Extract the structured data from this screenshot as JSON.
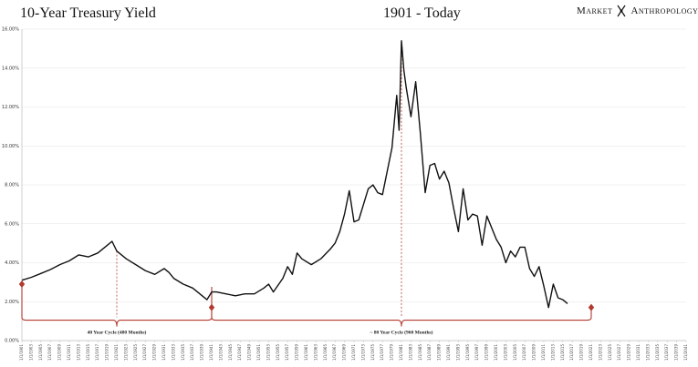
{
  "header": {
    "title": "10-Year Treasury Yield",
    "period": "1901 - Today",
    "brand_left": "Market",
    "brand_right": "Anthropology"
  },
  "colors": {
    "line": "#111111",
    "accent": "#b23a2e",
    "grid": "#e3e3e3",
    "axis": "#bbbbbb"
  },
  "annotations": {
    "cycle_40": "40 Year Cycle (480 Months)",
    "cycle_80": "~ 80 Year Cycle (960 Months)"
  },
  "chart_data": {
    "type": "line",
    "title": "10-Year Treasury Yield",
    "subtitle": "1901 - Today",
    "ylim": [
      0,
      16
    ],
    "xlim": [
      1901,
      2041
    ],
    "y_ticks": [
      "0.00%",
      "2.00%",
      "4.00%",
      "6.00%",
      "8.00%",
      "10.00%",
      "12.00%",
      "14.00%",
      "16.00%"
    ],
    "grid": true,
    "x_tick_years": [
      1901,
      1903,
      1905,
      1907,
      1909,
      1911,
      1913,
      1915,
      1917,
      1919,
      1921,
      1923,
      1925,
      1927,
      1929,
      1931,
      1933,
      1935,
      1937,
      1939,
      1941,
      1943,
      1945,
      1947,
      1949,
      1951,
      1953,
      1955,
      1957,
      1959,
      1961,
      1963,
      1965,
      1967,
      1969,
      1971,
      1973,
      1975,
      1977,
      1979,
      1981,
      1983,
      1985,
      1987,
      1989,
      1991,
      1993,
      1995,
      1997,
      1999,
      2001,
      2003,
      2005,
      2007,
      2009,
      2011,
      2013,
      2015,
      2017,
      2019,
      2021,
      2023,
      2025,
      2027,
      2029,
      2031,
      2033,
      2035,
      2037,
      2039,
      2041
    ],
    "series": [
      {
        "x": [
          1901,
          1903,
          1905,
          1907,
          1909,
          1911,
          1913,
          1915,
          1917,
          1919,
          1920,
          1921,
          1922,
          1923,
          1925,
          1927,
          1929,
          1931,
          1932,
          1933,
          1935,
          1937,
          1939,
          1940,
          1941,
          1942,
          1944,
          1946,
          1948,
          1950,
          1952,
          1953,
          1954,
          1956,
          1957,
          1958,
          1959,
          1960,
          1962,
          1964,
          1966,
          1967,
          1968,
          1969,
          1970,
          1971,
          1972,
          1973,
          1974,
          1975,
          1976,
          1977,
          1978,
          1979,
          1980,
          1980.5,
          1981,
          1981.5,
          1982,
          1983,
          1984,
          1985,
          1986,
          1987,
          1988,
          1989,
          1990,
          1991,
          1992,
          1993,
          1994,
          1995,
          1996,
          1997,
          1998,
          1999,
          2000,
          2001,
          2002,
          2003,
          2004,
          2005,
          2006,
          2007,
          2008,
          2009,
          2010,
          2011,
          2012,
          2013,
          2014,
          2015,
          2016
        ],
        "y": [
          3.1,
          3.25,
          3.45,
          3.65,
          3.9,
          4.1,
          4.4,
          4.3,
          4.5,
          4.9,
          5.1,
          4.6,
          4.4,
          4.2,
          3.9,
          3.6,
          3.4,
          3.7,
          3.5,
          3.2,
          2.9,
          2.7,
          2.3,
          2.1,
          2.5,
          2.5,
          2.4,
          2.3,
          2.4,
          2.4,
          2.7,
          2.9,
          2.5,
          3.2,
          3.8,
          3.4,
          4.5,
          4.2,
          3.9,
          4.2,
          4.7,
          5.0,
          5.6,
          6.5,
          7.7,
          6.1,
          6.2,
          7.0,
          7.8,
          8.0,
          7.6,
          7.5,
          8.7,
          9.9,
          12.6,
          10.8,
          15.4,
          13.9,
          13.0,
          11.5,
          13.3,
          10.6,
          7.6,
          9.0,
          9.1,
          8.3,
          8.7,
          8.1,
          6.8,
          5.6,
          7.8,
          6.2,
          6.5,
          6.4,
          4.9,
          6.4,
          5.8,
          5.2,
          4.8,
          4.0,
          4.6,
          4.3,
          4.8,
          4.8,
          3.7,
          3.3,
          3.8,
          2.8,
          1.7,
          2.9,
          2.2,
          2.1,
          1.9
        ]
      }
    ],
    "markers": [
      {
        "x": 1901,
        "y": 2.9
      },
      {
        "x": 1941,
        "y": 1.7
      },
      {
        "x": 2021,
        "y": 1.7
      }
    ],
    "cycle_lines": [
      {
        "x": 1921,
        "label": "40 Year Cycle (480 Months)"
      },
      {
        "x": 1981,
        "label": "~ 80 Year Cycle (960 Months)"
      }
    ]
  }
}
